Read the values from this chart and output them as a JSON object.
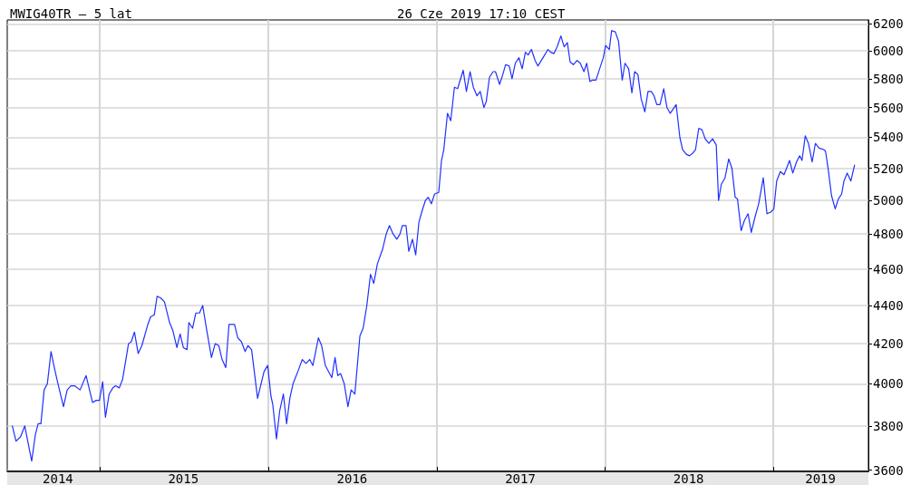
{
  "chart_data": {
    "type": "line",
    "title": "MWIG40TR – 5 lat",
    "subtitle": "26 Cze 2019 17:10 CEST",
    "color": "#2030ff",
    "log": true,
    "grid": true,
    "xlim": [
      "2014-06-14",
      "2019-07-26"
    ],
    "xticks": [
      {
        "value": "2014-10-02",
        "label": "2014"
      },
      {
        "value": "2015-01-01",
        "label": null
      },
      {
        "value": "2015-07-01",
        "label": "2015"
      },
      {
        "value": "2016-01-01",
        "label": null
      },
      {
        "value": "2016-07-01",
        "label": "2016"
      },
      {
        "value": "2017-01-01",
        "label": null
      },
      {
        "value": "2017-07-01",
        "label": "2017"
      },
      {
        "value": "2018-01-01",
        "label": null
      },
      {
        "value": "2018-07-01",
        "label": "2018"
      },
      {
        "value": "2019-01-01",
        "label": null
      },
      {
        "value": "2019-04-13",
        "label": "2019"
      }
    ],
    "ylim": [
      3595,
      6230
    ],
    "yticks": [
      3600,
      3800,
      4000,
      4200,
      4400,
      4600,
      4800,
      5000,
      5200,
      5400,
      5600,
      5800,
      6000,
      6200
    ],
    "x": [
      "2014-06-25",
      "2014-07-03",
      "2014-07-13",
      "2014-07-22",
      "2014-08-06",
      "2014-08-14",
      "2014-08-20",
      "2014-08-26",
      "2014-09-02",
      "2014-09-09",
      "2014-09-17",
      "2014-09-25",
      "2014-10-01",
      "2014-10-14",
      "2014-10-22",
      "2014-10-30",
      "2014-11-07",
      "2014-11-19",
      "2014-12-02",
      "2014-12-16",
      "2014-12-24",
      "2014-12-31",
      "2015-01-07",
      "2015-01-13",
      "2015-01-21",
      "2015-01-29",
      "2015-02-04",
      "2015-02-12",
      "2015-02-19",
      "2015-02-25",
      "2015-03-04",
      "2015-03-10",
      "2015-03-17",
      "2015-03-25",
      "2015-04-02",
      "2015-04-15",
      "2015-04-21",
      "2015-04-29",
      "2015-05-05",
      "2015-05-13",
      "2015-05-21",
      "2015-06-01",
      "2015-06-08",
      "2015-06-17",
      "2015-06-24",
      "2015-07-01",
      "2015-07-09",
      "2015-07-13",
      "2015-07-21",
      "2015-07-28",
      "2015-08-05",
      "2015-08-12",
      "2015-08-20",
      "2015-08-31",
      "2015-09-08",
      "2015-09-16",
      "2015-09-23",
      "2015-10-01",
      "2015-10-08",
      "2015-10-20",
      "2015-10-27",
      "2015-11-04",
      "2015-11-12",
      "2015-11-18",
      "2015-11-26",
      "2015-12-09",
      "2015-12-23",
      "2015-12-31",
      "2016-01-07",
      "2016-01-11",
      "2016-01-19",
      "2016-01-26",
      "2016-02-03",
      "2016-02-10",
      "2016-02-17",
      "2016-02-24",
      "2016-03-07",
      "2016-03-15",
      "2016-03-23",
      "2016-03-31",
      "2016-04-07",
      "2016-04-19",
      "2016-04-26",
      "2016-05-04",
      "2016-05-18",
      "2016-05-25",
      "2016-05-31",
      "2016-06-06",
      "2016-06-14",
      "2016-06-22",
      "2016-06-29",
      "2016-07-07",
      "2016-07-18",
      "2016-07-25",
      "2016-08-02",
      "2016-08-10",
      "2016-08-17",
      "2016-08-25",
      "2016-09-05",
      "2016-09-13",
      "2016-09-20",
      "2016-09-28",
      "2016-10-06",
      "2016-10-13",
      "2016-10-18",
      "2016-10-26",
      "2016-11-01",
      "2016-11-09",
      "2016-11-16",
      "2016-11-23",
      "2016-11-29",
      "2016-12-07",
      "2016-12-13",
      "2016-12-20",
      "2016-12-27",
      "2017-01-05",
      "2017-01-11",
      "2017-01-16",
      "2017-01-24",
      "2017-01-31",
      "2017-02-08",
      "2017-02-15",
      "2017-02-27",
      "2017-03-06",
      "2017-03-14",
      "2017-03-21",
      "2017-03-29",
      "2017-04-05",
      "2017-04-13",
      "2017-04-18",
      "2017-04-25",
      "2017-05-03",
      "2017-05-08",
      "2017-05-17",
      "2017-05-24",
      "2017-05-30",
      "2017-06-07",
      "2017-06-13",
      "2017-06-20",
      "2017-06-28",
      "2017-07-05",
      "2017-07-12",
      "2017-07-18",
      "2017-07-25",
      "2017-08-02",
      "2017-08-08",
      "2017-08-21",
      "2017-08-30",
      "2017-09-05",
      "2017-09-12",
      "2017-09-19",
      "2017-09-27",
      "2017-10-04",
      "2017-10-11",
      "2017-10-17",
      "2017-10-24",
      "2017-11-01",
      "2017-11-08",
      "2017-11-16",
      "2017-11-22",
      "2017-11-29",
      "2017-12-04",
      "2017-12-12",
      "2017-12-20",
      "2017-12-28",
      "2018-01-02",
      "2018-01-10",
      "2018-01-15",
      "2018-01-23",
      "2018-01-30",
      "2018-02-07",
      "2018-02-13",
      "2018-02-21",
      "2018-02-28",
      "2018-03-06",
      "2018-03-13",
      "2018-03-20",
      "2018-03-28",
      "2018-04-04",
      "2018-04-11",
      "2018-04-17",
      "2018-04-23",
      "2018-04-30",
      "2018-05-08",
      "2018-05-15",
      "2018-05-22",
      "2018-06-04",
      "2018-06-12",
      "2018-06-18",
      "2018-06-26",
      "2018-07-03",
      "2018-07-11",
      "2018-07-16",
      "2018-07-23",
      "2018-07-30",
      "2018-08-06",
      "2018-08-14",
      "2018-08-22",
      "2018-08-30",
      "2018-09-04",
      "2018-09-10",
      "2018-09-18",
      "2018-09-26",
      "2018-10-03",
      "2018-10-10",
      "2018-10-15",
      "2018-10-23",
      "2018-10-30",
      "2018-11-07",
      "2018-11-14",
      "2018-11-22",
      "2018-11-30",
      "2018-12-10",
      "2018-12-18",
      "2018-12-26",
      "2019-01-02",
      "2019-01-08",
      "2019-01-16",
      "2019-01-24",
      "2019-02-05",
      "2019-02-12",
      "2019-02-20",
      "2019-02-27",
      "2019-03-04",
      "2019-03-11",
      "2019-03-18",
      "2019-03-26",
      "2019-04-02",
      "2019-04-10",
      "2019-04-20",
      "2019-04-24",
      "2019-04-30",
      "2019-05-07",
      "2019-05-15",
      "2019-05-22",
      "2019-05-29",
      "2019-06-03",
      "2019-06-10",
      "2019-06-18",
      "2019-06-26"
    ],
    "values": [
      3800,
      3730,
      3750,
      3800,
      3640,
      3760,
      3810,
      3810,
      3970,
      4000,
      4160,
      4070,
      4010,
      3890,
      3970,
      3990,
      3990,
      3970,
      4040,
      3910,
      3920,
      3920,
      4010,
      3840,
      3950,
      3980,
      3990,
      3980,
      4020,
      4100,
      4200,
      4210,
      4260,
      4150,
      4190,
      4300,
      4340,
      4350,
      4450,
      4440,
      4420,
      4310,
      4270,
      4180,
      4250,
      4180,
      4170,
      4310,
      4280,
      4360,
      4360,
      4400,
      4280,
      4130,
      4200,
      4190,
      4120,
      4080,
      4300,
      4300,
      4230,
      4210,
      4160,
      4190,
      4170,
      3930,
      4060,
      4090,
      3940,
      3900,
      3740,
      3870,
      3950,
      3810,
      3930,
      4000,
      4070,
      4120,
      4100,
      4120,
      4090,
      4230,
      4190,
      4090,
      4030,
      4130,
      4040,
      4050,
      4000,
      3890,
      3970,
      3950,
      4240,
      4280,
      4400,
      4570,
      4520,
      4630,
      4710,
      4800,
      4850,
      4800,
      4770,
      4800,
      4850,
      4850,
      4700,
      4770,
      4680,
      4870,
      4930,
      5000,
      5020,
      4980,
      5040,
      5050,
      5250,
      5320,
      5560,
      5510,
      5740,
      5730,
      5860,
      5710,
      5850,
      5740,
      5680,
      5710,
      5600,
      5640,
      5810,
      5850,
      5850,
      5760,
      5830,
      5900,
      5890,
      5800,
      5910,
      5950,
      5870,
      5990,
      5970,
      6010,
      5930,
      5890,
      5960,
      6010,
      5990,
      5980,
      6030,
      6110,
      6030,
      6060,
      5920,
      5900,
      5930,
      5910,
      5850,
      5910,
      5780,
      5790,
      5790,
      5870,
      5950,
      6040,
      6010,
      6150,
      6140,
      6070,
      5790,
      5910,
      5870,
      5700,
      5850,
      5830,
      5660,
      5570,
      5710,
      5710,
      5680,
      5620,
      5620,
      5730,
      5600,
      5560,
      5620,
      5400,
      5320,
      5290,
      5280,
      5300,
      5320,
      5460,
      5450,
      5390,
      5360,
      5390,
      5350,
      5000,
      5100,
      5140,
      5260,
      5200,
      5020,
      5010,
      4820,
      4880,
      4920,
      4810,
      4900,
      4980,
      5140,
      4920,
      4930,
      4950,
      5120,
      5180,
      5160,
      5250,
      5170,
      5240,
      5280,
      5250,
      5410,
      5360,
      5240,
      5360,
      5330,
      5320,
      5310,
      5190,
      5030,
      4950,
      5010,
      5040,
      5120,
      5170,
      5120,
      5220
    ]
  }
}
